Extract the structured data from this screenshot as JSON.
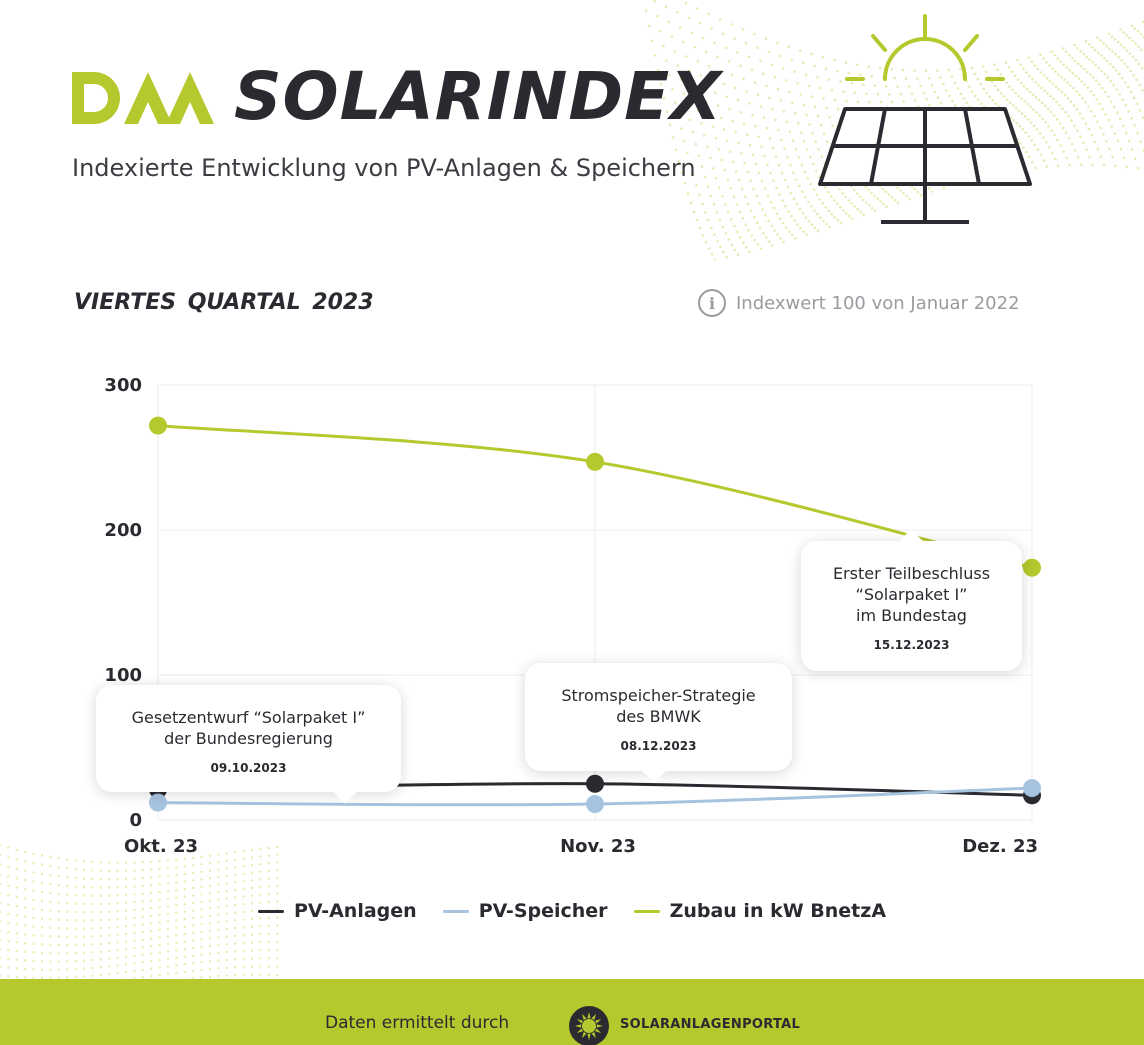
{
  "header": {
    "logo_text": "DAA",
    "title": "SOLARINDEX",
    "subtitle": "Indexierte Entwicklung von PV-Anlagen & Speichern",
    "icon": "solar-panel-sun-icon"
  },
  "period_label": "VIERTES  QUARTAL 2023",
  "index_note": "Indexwert 100 von Januar 2022",
  "info_icon_glyph": "i",
  "chart_data": {
    "type": "line",
    "categories": [
      "Okt. 23",
      "Nov. 23",
      "Dez. 23"
    ],
    "yticks": [
      0,
      100,
      200,
      300
    ],
    "ylim": [
      0,
      300
    ],
    "grid": true,
    "legend_position": "bottom",
    "series": [
      {
        "name": "PV-Anlagen",
        "color": "#2b2a30",
        "values": [
          21,
          25,
          17
        ]
      },
      {
        "name": "PV-Speicher",
        "color": "#a6c3e0",
        "values": [
          12,
          11,
          22
        ]
      },
      {
        "name": "Zubau in kW BnetzA",
        "color": "#b5c82e",
        "values": [
          272,
          247,
          174
        ]
      }
    ],
    "annotations": [
      {
        "text": "Gesetzentwurf “Solarpaket I”\nder Bundesregierung",
        "date": "09.10.2023"
      },
      {
        "text": "Stromspeicher-Strategie\ndes BMWK",
        "date": "08.12.2023"
      },
      {
        "text": "Erster Teilbeschluss\n“Solarpaket I”\nim Bundestag",
        "date": "15.12.2023"
      }
    ]
  },
  "footer": {
    "text": "Daten ermittelt durch",
    "brand": "SOLARANLAGENPORTAL",
    "icon": "sun-badge-icon"
  },
  "colors": {
    "accent": "#b5c82e",
    "dark": "#2b2a30",
    "storage": "#a6c3e0"
  }
}
